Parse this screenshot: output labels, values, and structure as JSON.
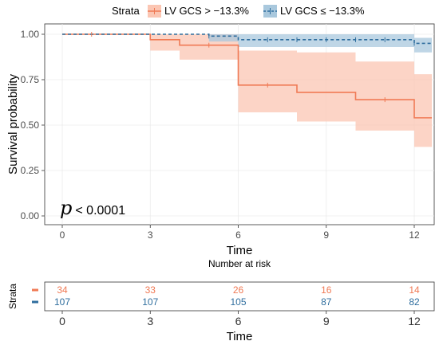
{
  "chart_data": {
    "type": "line",
    "subtype": "kaplan-meier",
    "xlabel": "Time",
    "ylabel": "Survival probability",
    "xlim": [
      0,
      12.6
    ],
    "ylim": [
      0,
      1.0
    ],
    "x_ticks": [
      0,
      3,
      6,
      9,
      12
    ],
    "y_ticks": [
      0.0,
      0.25,
      0.5,
      0.75,
      1.0
    ],
    "y_tick_labels": [
      "0.00",
      "0.25",
      "0.50",
      "0.75",
      "1.00"
    ],
    "grid": true,
    "legend": {
      "title": "Strata",
      "placement": "top",
      "entries": [
        "LV GCS > −13.3%",
        "LV GCS ≤ −13.3%"
      ]
    },
    "annotation": {
      "p_symbol": "p",
      "p_text": "< 0.0001"
    },
    "series": [
      {
        "name": "LV GCS > −13.3%",
        "color": "#f07a55",
        "band_color": "#fbc6b3",
        "dash": "solid",
        "steps": [
          {
            "t": 0,
            "s": 1.0,
            "lo": 1.0,
            "hi": 1.0
          },
          {
            "t": 3,
            "s": 0.97,
            "lo": 0.91,
            "hi": 1.0
          },
          {
            "t": 4,
            "s": 0.94,
            "lo": 0.86,
            "hi": 1.0
          },
          {
            "t": 6,
            "s": 0.72,
            "lo": 0.57,
            "hi": 0.91
          },
          {
            "t": 8,
            "s": 0.68,
            "lo": 0.52,
            "hi": 0.9
          },
          {
            "t": 10,
            "s": 0.64,
            "lo": 0.47,
            "hi": 0.85
          },
          {
            "t": 12,
            "s": 0.54,
            "lo": 0.38,
            "hi": 0.78
          }
        ],
        "end": 12.6,
        "censor_ticks": [
          1,
          5,
          7,
          11
        ]
      },
      {
        "name": "LV GCS ≤ −13.3%",
        "color": "#2f6e9e",
        "band_color": "#a9c8dd",
        "dash": "dashed",
        "steps": [
          {
            "t": 0,
            "s": 1.0,
            "lo": 1.0,
            "hi": 1.0
          },
          {
            "t": 5,
            "s": 0.99,
            "lo": 0.96,
            "hi": 1.0
          },
          {
            "t": 6,
            "s": 0.97,
            "lo": 0.93,
            "hi": 1.0
          },
          {
            "t": 12,
            "s": 0.95,
            "lo": 0.9,
            "hi": 0.98
          }
        ],
        "end": 12.6,
        "censor_ticks": [
          5,
          7,
          8,
          9,
          10,
          11,
          12
        ]
      }
    ],
    "risk_table": {
      "title": "Number at risk",
      "ylabel": "Strata",
      "xlabel": "Time",
      "times": [
        0,
        3,
        6,
        9,
        12
      ],
      "rows": [
        {
          "color": "#f07a55",
          "values": [
            34,
            33,
            26,
            16,
            14
          ]
        },
        {
          "color": "#2f6e9e",
          "values": [
            107,
            107,
            105,
            87,
            82
          ]
        }
      ]
    }
  }
}
